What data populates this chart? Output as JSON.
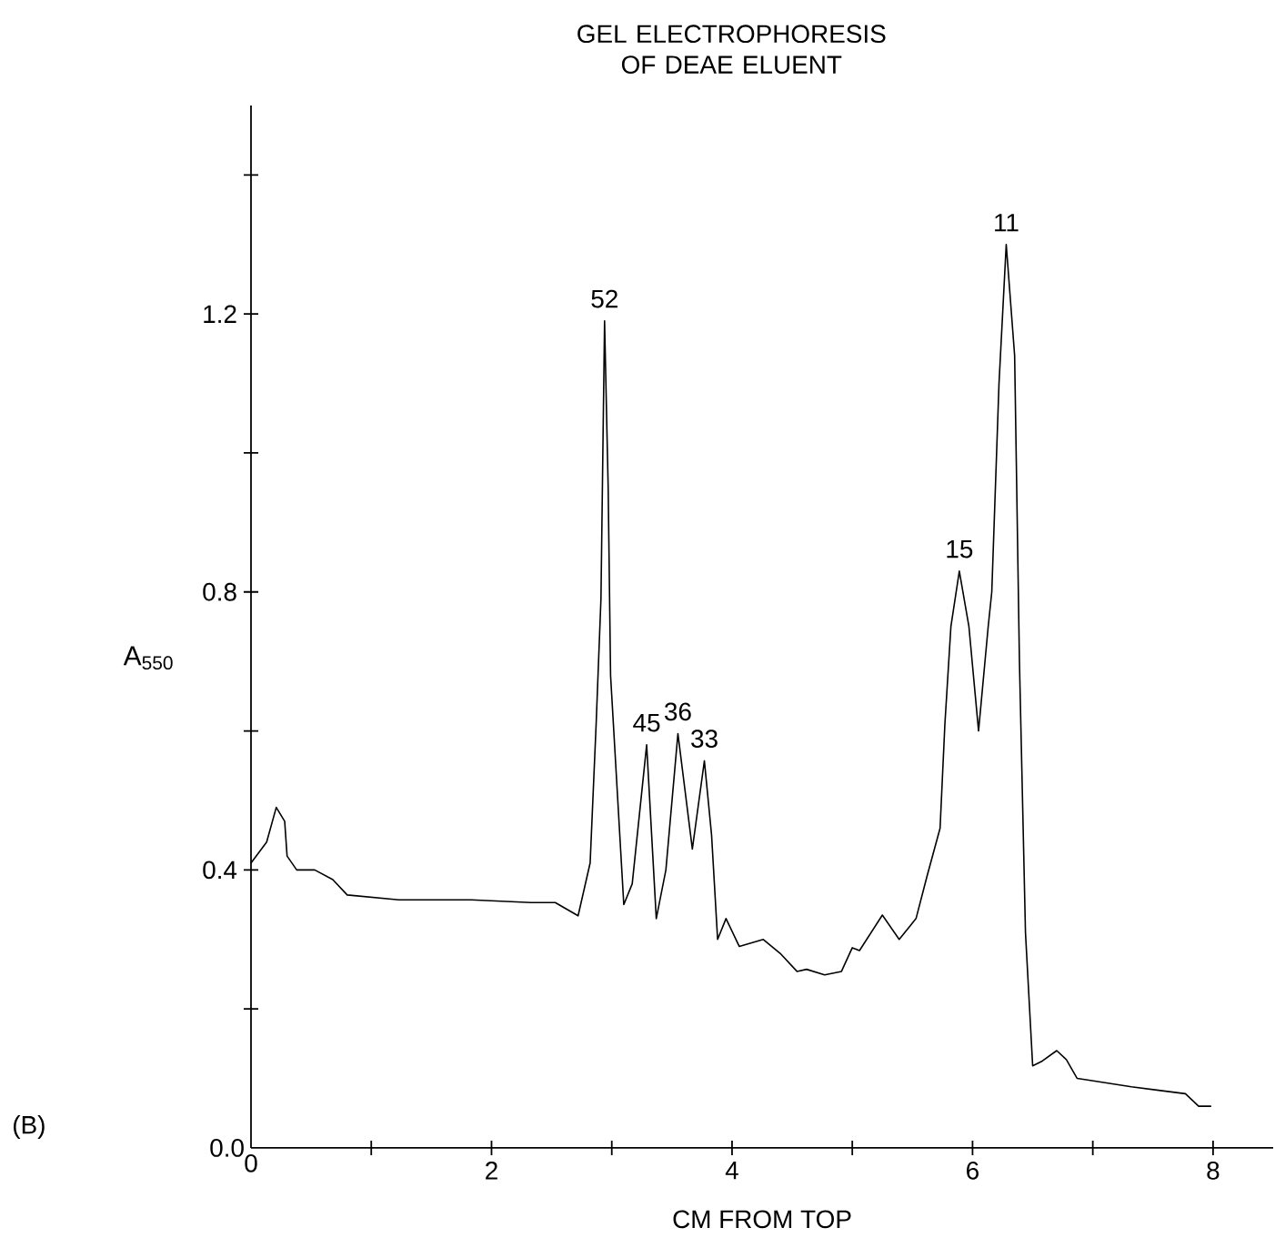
{
  "chart_data": {
    "type": "line",
    "title": "GEL ELECTROPHORESIS OF DEAE ELUENT",
    "xlabel": "CM FROM TOP",
    "ylabel": "A$_{550}$",
    "x": [
      0,
      0.13,
      0.21,
      0.28,
      0.3,
      0.38,
      0.53,
      0.68,
      0.8,
      1.23,
      1.83,
      2.33,
      2.53,
      2.72,
      2.82,
      2.87,
      2.91,
      2.94,
      2.97,
      2.99,
      3.1,
      3.17,
      3.29,
      3.37,
      3.45,
      3.55,
      3.67,
      3.77,
      3.83,
      3.88,
      3.95,
      4.06,
      4.26,
      4.4,
      4.54,
      4.62,
      4.77,
      4.91,
      5.0,
      5.06,
      5.25,
      5.39,
      5.53,
      5.62,
      5.73,
      5.77,
      5.82,
      5.89,
      5.97,
      6.05,
      6.13,
      6.16,
      6.22,
      6.28,
      6.35,
      6.39,
      6.44,
      6.5,
      6.58,
      6.7,
      6.78,
      6.87,
      7.32,
      7.77,
      7.88,
      7.98
    ],
    "values": [
      0.41,
      0.44,
      0.49,
      0.47,
      0.42,
      0.4,
      0.4,
      0.386,
      0.364,
      0.357,
      0.357,
      0.353,
      0.353,
      0.334,
      0.41,
      0.61,
      0.79,
      1.19,
      0.95,
      0.68,
      0.35,
      0.38,
      0.58,
      0.33,
      0.4,
      0.596,
      0.43,
      0.557,
      0.45,
      0.3,
      0.33,
      0.29,
      0.3,
      0.28,
      0.254,
      0.257,
      0.249,
      0.254,
      0.288,
      0.284,
      0.335,
      0.3,
      0.33,
      0.39,
      0.46,
      0.61,
      0.75,
      0.83,
      0.75,
      0.6,
      0.75,
      0.8,
      1.1,
      1.3,
      1.14,
      0.7,
      0.31,
      0.118,
      0.125,
      0.14,
      0.127,
      0.1,
      0.088,
      0.078,
      0.06,
      0.06
    ],
    "color": "#000000",
    "marker": "none",
    "line_style": "solid",
    "xlim": [
      0,
      8.5
    ],
    "ylim": [
      0,
      1.5
    ],
    "xticks": [
      0,
      {
        "value": 1,
        "label": null
      },
      2,
      {
        "value": 3,
        "label": null
      },
      4,
      {
        "value": 5,
        "label": null
      },
      6,
      {
        "value": 7,
        "label": null
      },
      8
    ],
    "yticks": [
      {
        "value": 0,
        "label": "0.0"
      },
      {
        "value": 0.2,
        "label": null
      },
      0.4,
      {
        "value": 0.6,
        "label": null
      },
      0.8,
      {
        "value": 1.0,
        "label": null
      },
      1.2,
      {
        "value": 1.4,
        "label": null
      }
    ],
    "annotations": [
      {
        "text": "52",
        "x": 2.94,
        "y": 1.19
      },
      {
        "text": "45",
        "x": 3.29,
        "y": 0.58
      },
      {
        "text": "36",
        "x": 3.55,
        "y": 0.596
      },
      {
        "text": "33",
        "x": 3.77,
        "y": 0.557
      },
      {
        "text": "15",
        "x": 5.89,
        "y": 0.83
      },
      {
        "text": "11",
        "x": 6.28,
        "y": 1.3
      },
      "(B)"
    ]
  }
}
